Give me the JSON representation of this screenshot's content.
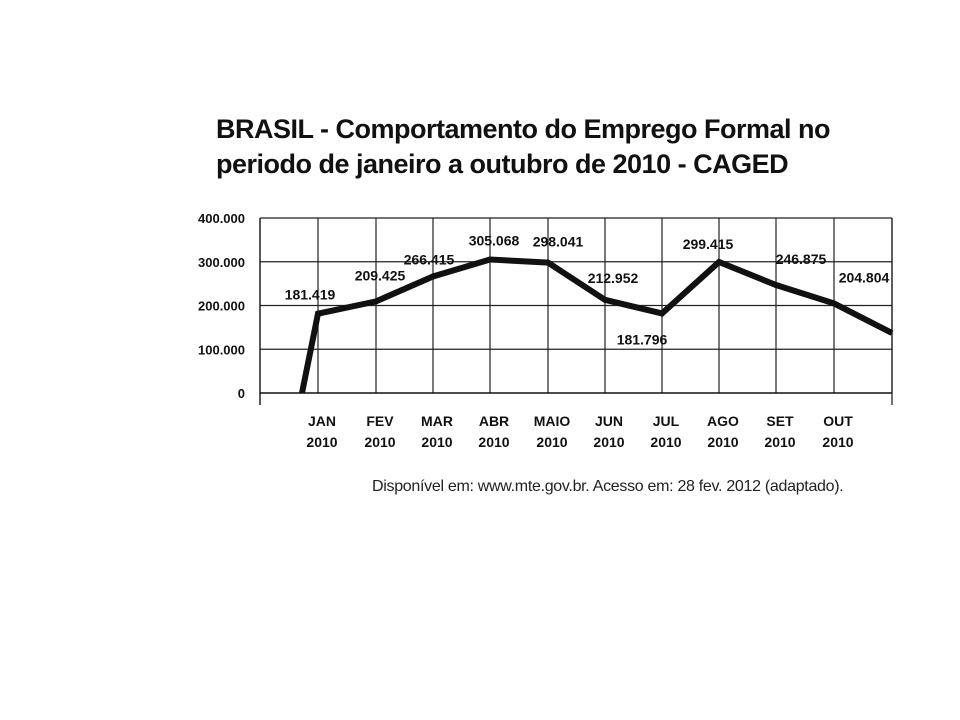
{
  "chart_data": {
    "type": "line",
    "title_line1": "BRASIL - Comportamento do Emprego Formal no",
    "title_line2": "periodo de janeiro a outubro de 2010 - CAGED",
    "y_tick_labels": [
      "400.000",
      "300.000",
      "200.000",
      "100.000",
      "0"
    ],
    "y_ticks": [
      400000,
      300000,
      200000,
      100000,
      0
    ],
    "ylim": [
      0,
      400000
    ],
    "months": [
      "JAN",
      "FEV",
      "MAR",
      "ABR",
      "MAIO",
      "JUN",
      "JUL",
      "AGO",
      "SET",
      "OUT"
    ],
    "years": [
      "2010",
      "2010",
      "2010",
      "2010",
      "2010",
      "2010",
      "2010",
      "2010",
      "2010",
      "2010"
    ],
    "series": [
      {
        "name": "Emprego Formal",
        "values": [
          181419,
          209425,
          266415,
          305068,
          298041,
          212952,
          181796,
          299415,
          246875,
          204804
        ],
        "labels": [
          "181.419",
          "209.425",
          "266.415",
          "305.068",
          "298.041",
          "212.952",
          "181.796",
          "299.415",
          "246.875",
          "204.804"
        ]
      }
    ],
    "grid": true,
    "source": "Disponível em: www.mte.gov.br. Acesso em: 28 fev. 2012 (adaptado)."
  }
}
